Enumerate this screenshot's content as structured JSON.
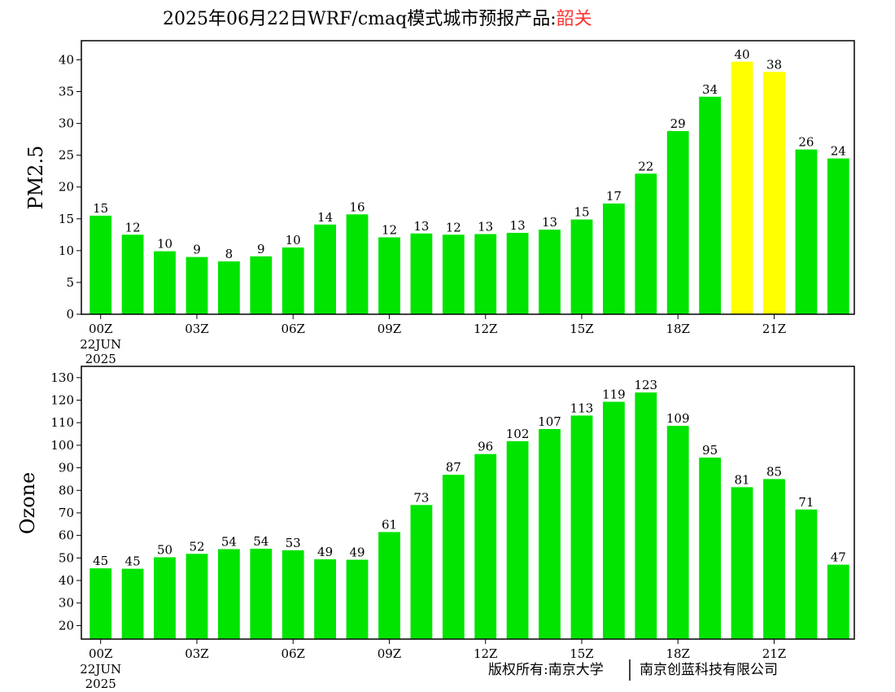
{
  "header": {
    "title_main": "2025年06月22日WRF/cmaq模式城市预报产品:",
    "title_city": "韶关"
  },
  "footer": {
    "copyright_left": "版权所有:南京大学",
    "copyright_right": "南京创蓝科技有限公司"
  },
  "colors": {
    "bar_normal": "#00e400",
    "bar_highlight": "#ffff00",
    "city_title": "#ff3333"
  },
  "chart_data": [
    {
      "type": "bar",
      "ylabel": "PM2.5",
      "ylim": [
        0,
        43
      ],
      "yticks": [
        0,
        5,
        10,
        15,
        20,
        25,
        30,
        35,
        40
      ],
      "xtick_labels": [
        "00Z",
        "03Z",
        "06Z",
        "09Z",
        "12Z",
        "15Z",
        "18Z",
        "21Z"
      ],
      "xtick_indices": [
        0,
        3,
        6,
        9,
        12,
        15,
        18,
        21
      ],
      "first_tick_sublabels": [
        "22JUN",
        "2025"
      ],
      "values": [
        15,
        12,
        10,
        9,
        8,
        9,
        10,
        14,
        16,
        12,
        13,
        12,
        13,
        13,
        13,
        15,
        17,
        22,
        29,
        34,
        40,
        38,
        26,
        24
      ],
      "bar_values": [
        15.5,
        12.5,
        9.9,
        9.0,
        8.3,
        9.1,
        10.5,
        14.1,
        15.7,
        12.1,
        12.7,
        12.5,
        12.6,
        12.8,
        13.3,
        14.9,
        17.4,
        22.1,
        28.8,
        34.2,
        39.7,
        38.1,
        25.9,
        24.5
      ],
      "bar_colors": [
        "#00e400",
        "#00e400",
        "#00e400",
        "#00e400",
        "#00e400",
        "#00e400",
        "#00e400",
        "#00e400",
        "#00e400",
        "#00e400",
        "#00e400",
        "#00e400",
        "#00e400",
        "#00e400",
        "#00e400",
        "#00e400",
        "#00e400",
        "#00e400",
        "#00e400",
        "#00e400",
        "#ffff00",
        "#ffff00",
        "#00e400",
        "#00e400"
      ]
    },
    {
      "type": "bar",
      "ylabel": "Ozone",
      "ylim": [
        14,
        135
      ],
      "yticks": [
        20,
        30,
        40,
        50,
        60,
        70,
        80,
        90,
        100,
        110,
        120,
        130
      ],
      "xtick_labels": [
        "00Z",
        "03Z",
        "06Z",
        "09Z",
        "12Z",
        "15Z",
        "18Z",
        "21Z"
      ],
      "xtick_indices": [
        0,
        3,
        6,
        9,
        12,
        15,
        18,
        21
      ],
      "first_tick_sublabels": [
        "22JUN",
        "2025"
      ],
      "values": [
        45,
        45,
        50,
        52,
        54,
        54,
        53,
        49,
        49,
        61,
        73,
        87,
        96,
        102,
        107,
        113,
        119,
        123,
        109,
        95,
        81,
        85,
        71,
        47
      ],
      "bar_values": [
        45.4,
        45.2,
        50.3,
        51.8,
        53.9,
        54.1,
        53.4,
        49.4,
        49.2,
        61.5,
        73.5,
        86.9,
        96.1,
        101.8,
        107.2,
        113.2,
        119.3,
        123.4,
        108.6,
        94.5,
        81.4,
        85.0,
        71.5,
        47.0
      ],
      "bar_colors": [
        "#00e400",
        "#00e400",
        "#00e400",
        "#00e400",
        "#00e400",
        "#00e400",
        "#00e400",
        "#00e400",
        "#00e400",
        "#00e400",
        "#00e400",
        "#00e400",
        "#00e400",
        "#00e400",
        "#00e400",
        "#00e400",
        "#00e400",
        "#00e400",
        "#00e400",
        "#00e400",
        "#00e400",
        "#00e400",
        "#00e400",
        "#00e400"
      ]
    }
  ]
}
